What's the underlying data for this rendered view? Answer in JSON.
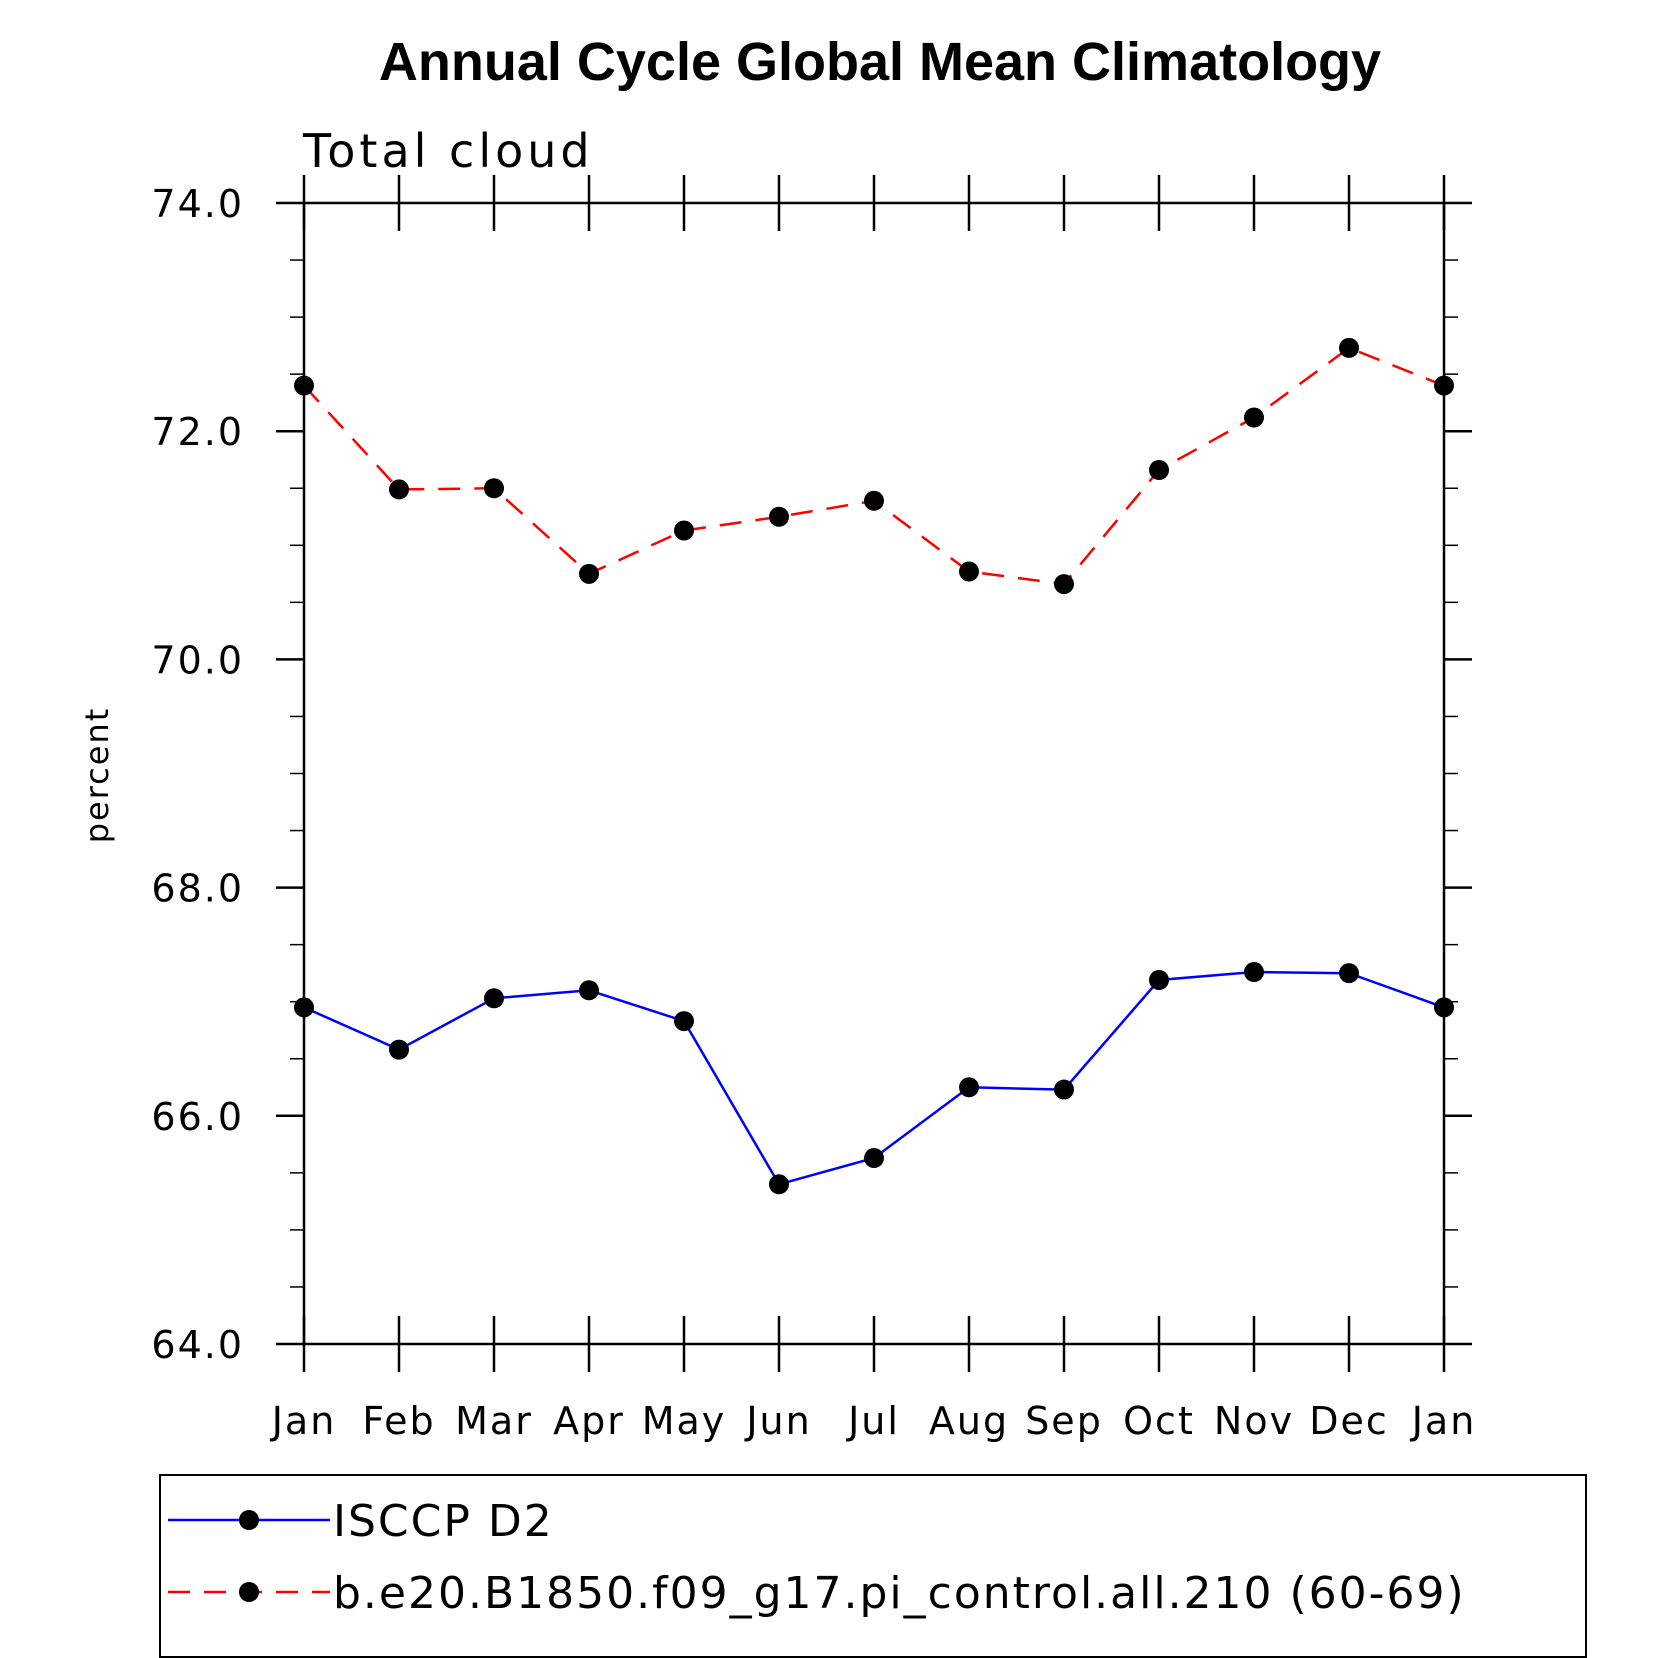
{
  "chart_data": {
    "type": "line",
    "title": "Annual Cycle Global Mean Climatology",
    "subtitle": "Total cloud",
    "ylabel": "percent",
    "xlabel": "",
    "categories": [
      "Jan",
      "Feb",
      "Mar",
      "Apr",
      "May",
      "Jun",
      "Jul",
      "Aug",
      "Sep",
      "Oct",
      "Nov",
      "Dec",
      "Jan"
    ],
    "ylim": [
      64.0,
      74.0
    ],
    "yticks": [
      "64.0",
      "66.0",
      "68.0",
      "70.0",
      "72.0",
      "74.0"
    ],
    "grid": false,
    "legend_position": "bottom",
    "series": [
      {
        "name": "ISCCP D2",
        "color": "#0000ff",
        "dash": "solid",
        "marker": "circle",
        "values": [
          66.95,
          66.58,
          67.03,
          67.1,
          66.83,
          65.4,
          65.63,
          66.25,
          66.23,
          67.19,
          67.26,
          67.25,
          66.95
        ]
      },
      {
        "name": "b.e20.B1850.f09_g17.pi_control.all.210 (60-69)",
        "color": "#ff0000",
        "dash": "dashed",
        "marker": "circle",
        "values": [
          72.4,
          71.49,
          71.5,
          70.75,
          71.13,
          71.25,
          71.39,
          70.77,
          70.66,
          71.66,
          72.12,
          72.73,
          72.4
        ]
      }
    ]
  }
}
